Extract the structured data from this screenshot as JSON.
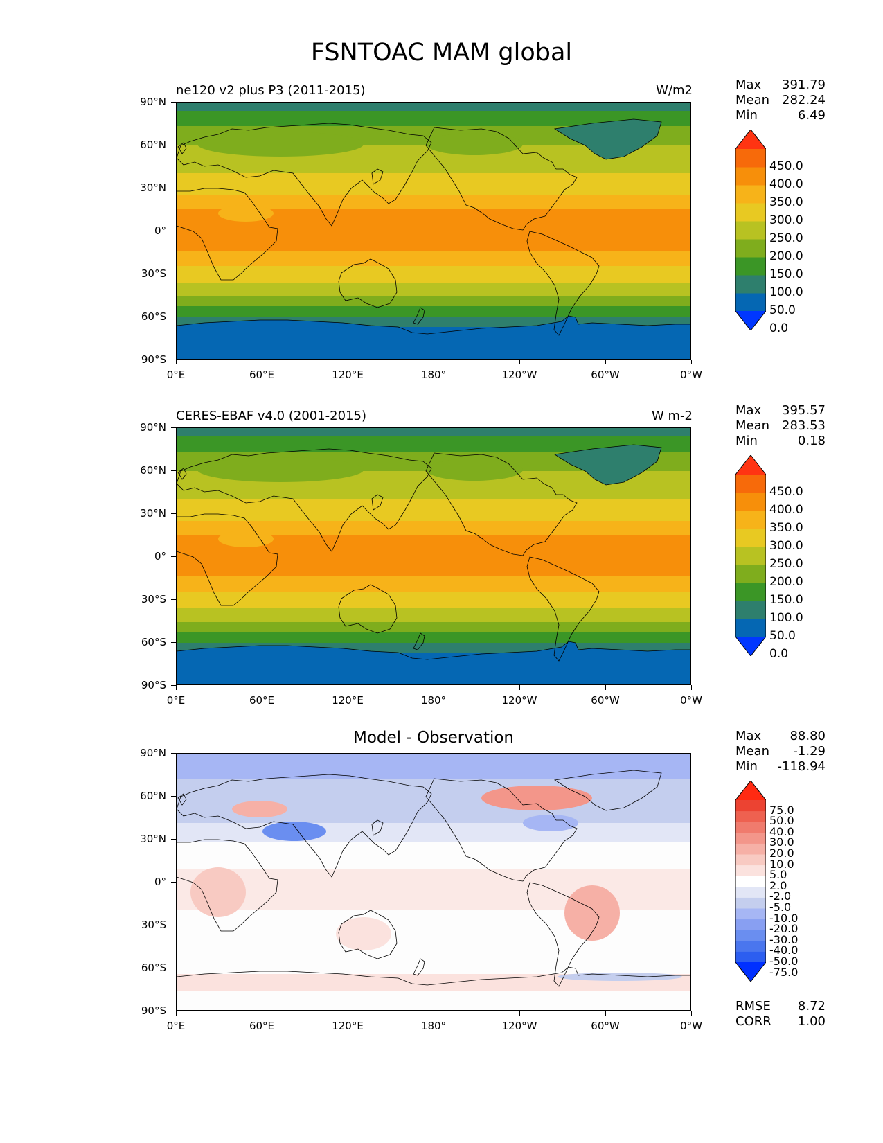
{
  "figure": {
    "title": "FSNTOAC MAM global"
  },
  "axes": {
    "lat_labels": [
      "90°N",
      "60°N",
      "30°N",
      "0°",
      "30°S",
      "60°S",
      "90°S"
    ],
    "lon_labels": [
      "0°E",
      "60°E",
      "120°E",
      "180°",
      "120°W",
      "60°W",
      "0°W"
    ]
  },
  "panels": [
    {
      "left_title": "ne120 v2 plus P3 (2011-2015)",
      "right_title": "W/m2",
      "center_title": "",
      "stats": [
        {
          "label": "Max",
          "value": "391.79"
        },
        {
          "label": "Mean",
          "value": "282.24"
        },
        {
          "label": "Min",
          "value": "6.49"
        }
      ],
      "colorbar": {
        "labels": [
          "450.0",
          "400.0",
          "350.0",
          "300.0",
          "250.0",
          "200.0",
          "150.0",
          "100.0",
          "50.0",
          "0.0"
        ],
        "colors": [
          "#0037ff",
          "#0567b3",
          "#2e7f6d",
          "#3b9626",
          "#7fad1d",
          "#b8c222",
          "#e8c922",
          "#f7b319",
          "#f78f0a",
          "#f76a0a",
          "#ff3412"
        ]
      }
    },
    {
      "left_title": "CERES-EBAF v4.0 (2001-2015)",
      "right_title": "W m-2",
      "center_title": "",
      "stats": [
        {
          "label": "Max",
          "value": "395.57"
        },
        {
          "label": "Mean",
          "value": "283.53"
        },
        {
          "label": "Min",
          "value": "0.18"
        }
      ],
      "colorbar": {
        "labels": [
          "450.0",
          "400.0",
          "350.0",
          "300.0",
          "250.0",
          "200.0",
          "150.0",
          "100.0",
          "50.0",
          "0.0"
        ],
        "colors": [
          "#0037ff",
          "#0567b3",
          "#2e7f6d",
          "#3b9626",
          "#7fad1d",
          "#b8c222",
          "#e8c922",
          "#f7b319",
          "#f78f0a",
          "#f76a0a",
          "#ff3412"
        ]
      }
    },
    {
      "left_title": "",
      "right_title": "",
      "center_title": "Model - Observation",
      "stats": [
        {
          "label": "Max",
          "value": "88.80"
        },
        {
          "label": "Mean",
          "value": "-1.29"
        },
        {
          "label": "Min",
          "value": "-118.94"
        }
      ],
      "metrics": [
        {
          "label": "RMSE",
          "value": "8.72"
        },
        {
          "label": "CORR",
          "value": "1.00"
        }
      ],
      "colorbar": {
        "labels": [
          "75.0",
          "50.0",
          "40.0",
          "30.0",
          "20.0",
          "10.0",
          "5.0",
          "2.0",
          "-2.0",
          "-5.0",
          "-10.0",
          "-20.0",
          "-30.0",
          "-40.0",
          "-50.0",
          "-75.0"
        ],
        "colors": [
          "#0030ff",
          "#2c5ef0",
          "#4a76ee",
          "#6a8ef0",
          "#889ff2",
          "#a6b6f4",
          "#c4ceee",
          "#e2e6f6",
          "#ffffff",
          "#fbe2de",
          "#f8cac2",
          "#f6b0a6",
          "#f3968a",
          "#f07b6d",
          "#ee6150",
          "#ec4332",
          "#ff2a12"
        ]
      }
    }
  ]
}
